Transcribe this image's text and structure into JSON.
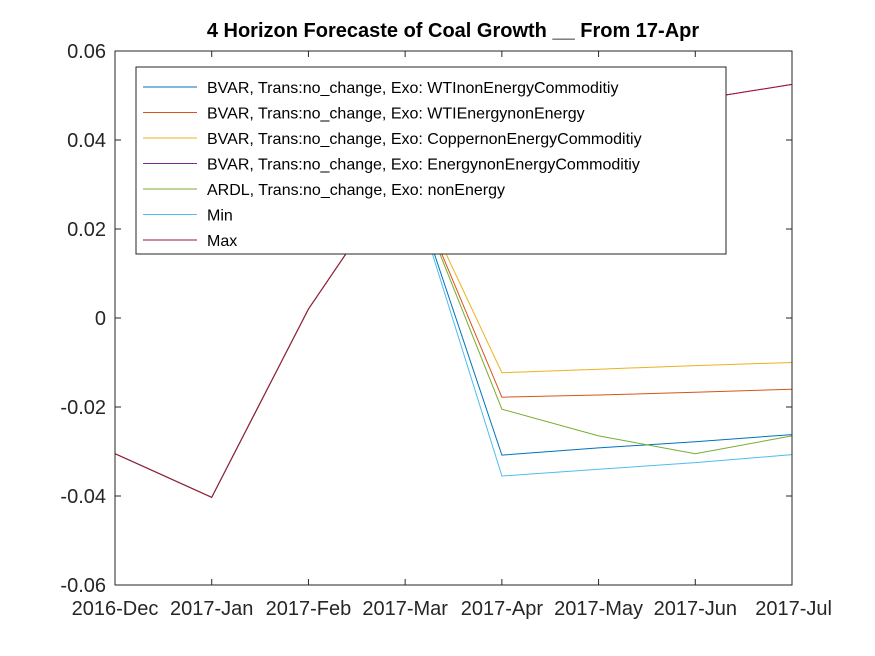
{
  "chart_data": {
    "type": "line",
    "title": "4 Horizon Forecaste of Coal Growth __ From 17-Apr",
    "xlabel": "",
    "ylabel": "",
    "categories": [
      "2016-Dec",
      "2017-Jan",
      "2017-Feb",
      "2017-Mar",
      "2017-Apr",
      "2017-May",
      "2017-Jun",
      "2017-Jul"
    ],
    "ylim": [
      -0.06,
      0.06
    ],
    "yticks": [
      -0.06,
      -0.04,
      -0.02,
      0,
      0.02,
      0.04,
      0.06
    ],
    "ytick_labels": [
      "-0.06",
      "-0.04",
      "-0.02",
      "0",
      "0.02",
      "0.04",
      "0.06"
    ],
    "grid": false,
    "legend_position": "top-left",
    "series": [
      {
        "name": "BVAR, Trans:no_change, Exo: WTInonEnergyCommoditiy",
        "color": "#0072bd",
        "values": [
          -0.0305,
          -0.0403,
          0.002,
          0.034,
          -0.0308,
          -0.0292,
          -0.0278,
          -0.0262
        ]
      },
      {
        "name": "BVAR, Trans:no_change, Exo: WTIEnergynonEnergy",
        "color": "#d95319",
        "values": [
          -0.0305,
          -0.0403,
          0.002,
          0.034,
          -0.0178,
          -0.0173,
          -0.0167,
          -0.016
        ]
      },
      {
        "name": "BVAR, Trans:no_change, Exo: CoppernonEnergyCommoditiy",
        "color": "#edb120",
        "values": [
          -0.0305,
          -0.0403,
          0.002,
          0.034,
          -0.0123,
          -0.0115,
          -0.0107,
          -0.01
        ]
      },
      {
        "name": "BVAR, Trans:no_change, Exo: EnergynonEnergyCommoditiy",
        "color": "#7e2f8e",
        "values": [
          -0.0305,
          -0.0403,
          0.002,
          0.034,
          0.043,
          0.046,
          0.049,
          0.0525
        ]
      },
      {
        "name": "ARDL, Trans:no_change, Exo: nonEnergy",
        "color": "#77ac30",
        "values": [
          -0.0305,
          -0.0403,
          0.002,
          0.034,
          -0.0205,
          -0.0265,
          -0.0305,
          -0.0265
        ]
      },
      {
        "name": "Min",
        "color": "#4dbeee",
        "values": [
          -0.0305,
          -0.0403,
          0.002,
          0.034,
          -0.0355,
          -0.034,
          -0.0325,
          -0.0307
        ]
      },
      {
        "name": "Max",
        "color": "#a2142f",
        "values": [
          -0.0305,
          -0.0403,
          0.002,
          0.034,
          0.043,
          0.046,
          0.049,
          0.0525
        ]
      }
    ]
  }
}
